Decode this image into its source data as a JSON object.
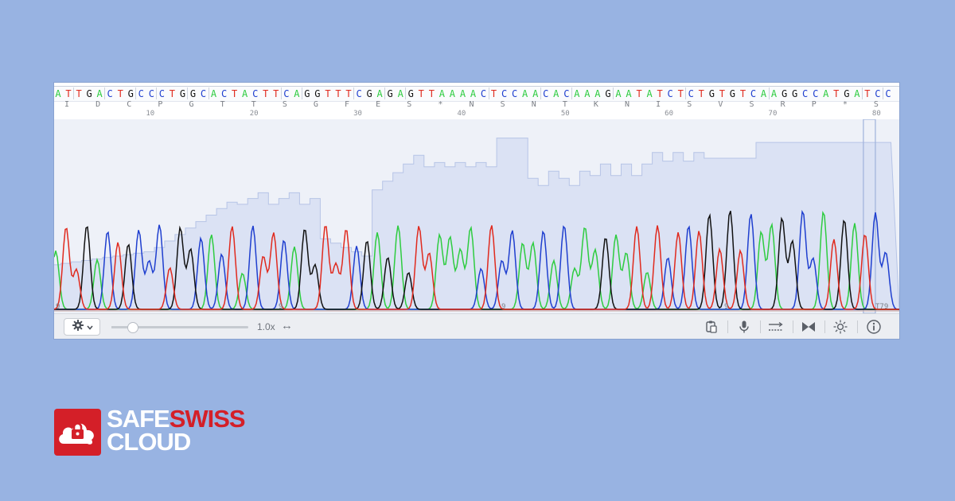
{
  "window": {
    "sequence": "ATTGACTGCCCTGGCACTACTTCAGGTTTCGAGAGTTAAAACTCCAACACAAAGAATATCTCTGTGTCAAGGCCATGATCC",
    "translation": [
      "I",
      "D",
      "C",
      "P",
      "G",
      "T",
      "T",
      "S",
      "G",
      "F",
      "E",
      "S",
      "*",
      "N",
      "S",
      "N",
      "T",
      "K",
      "N",
      "I",
      "S",
      "V",
      "S",
      "R",
      "P",
      "*",
      "S"
    ],
    "position_ticks": [
      "10",
      "20",
      "30",
      "40",
      "50",
      "60",
      "70",
      "80"
    ],
    "trace_markers": [
      "9",
      "9",
      "9",
      "9",
      "T79"
    ]
  },
  "colors": {
    "A": "#2ecc40",
    "C": "#1f3fcf",
    "G": "#111111",
    "T": "#e02a1e",
    "quality_fill": "#dbe2f4",
    "quality_line": "#b6c4e6",
    "background": "#98b3e2",
    "brand_red": "#d41f28"
  },
  "toolbar": {
    "settings_icon": "gear-icon",
    "zoom_value": 0.15,
    "zoom_label": "1.0x",
    "expand_icon": "↔",
    "icons": [
      "clipboard-icon",
      "microphone-icon",
      "alignment-icon",
      "bowtie-icon",
      "sun-icon",
      "info-icon"
    ]
  },
  "brand": {
    "line1_a": "SAFE",
    "line1_b": "SWISS",
    "line2": "CLOUD"
  }
}
